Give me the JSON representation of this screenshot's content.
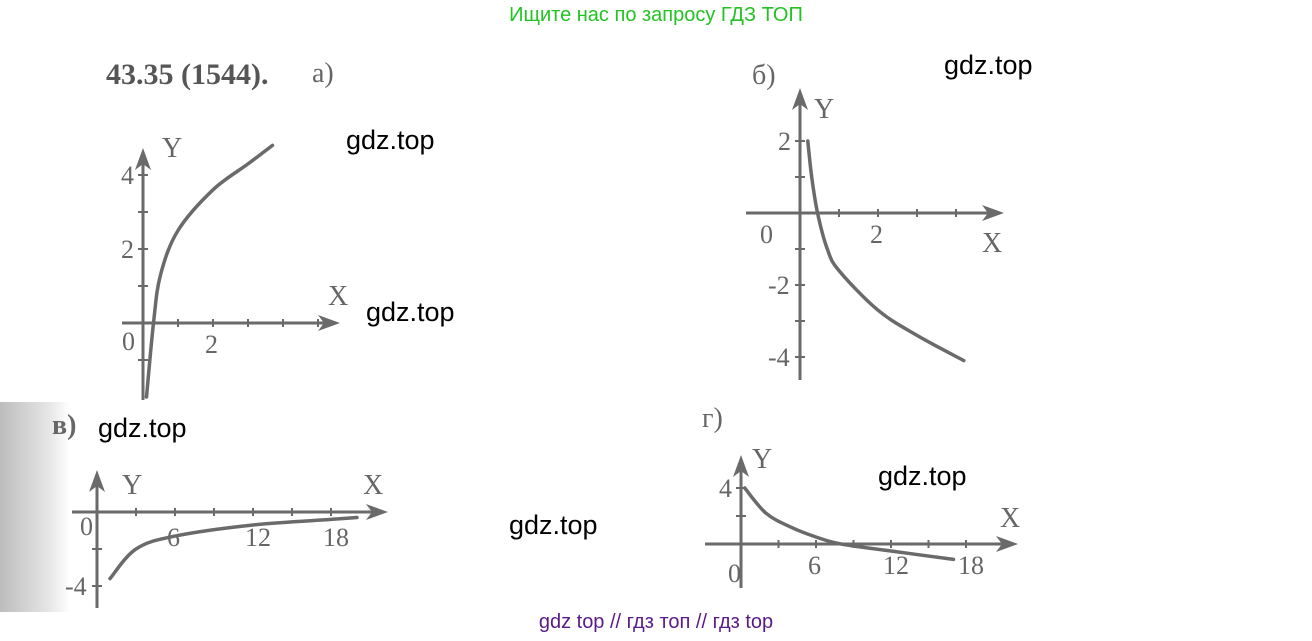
{
  "watermarks": {
    "top_banner": "Ищите нас по запросу ГДЗ ТОП",
    "bottom_banner": "gdz top  //  гдз топ  //  гдз top",
    "site": "gdz.top"
  },
  "problem_number": "43.35 (1544).",
  "colors": {
    "curve": "#6a6a6a",
    "top_banner": "#22c322",
    "bottom_banner": "#5a1a8a"
  },
  "chart_data": [
    {
      "type": "line",
      "panel_label": "а)",
      "xlabel": "X",
      "ylabel": "Y",
      "x_ticks": [
        "0",
        "2"
      ],
      "y_ticks": [
        "2",
        "4"
      ],
      "xlim": [
        0,
        5
      ],
      "ylim": [
        -2,
        5
      ],
      "grid": false,
      "x": [
        0.1,
        0.3,
        0.5,
        1,
        2,
        3,
        3.7
      ],
      "y": [
        -2,
        0,
        1.3,
        2.5,
        3.6,
        4.3,
        4.8
      ]
    },
    {
      "type": "line",
      "panel_label": "б)",
      "xlabel": "X",
      "ylabel": "Y",
      "x_ticks": [
        "0",
        "2"
      ],
      "y_ticks": [
        "2",
        "-2",
        "-4"
      ],
      "xlim": [
        0,
        5
      ],
      "ylim": [
        -4.2,
        2.5
      ],
      "grid": false,
      "x": [
        0.2,
        0.3,
        0.45,
        0.7,
        1,
        2,
        3,
        4.2
      ],
      "y": [
        2,
        1,
        0,
        -1,
        -1.6,
        -2.7,
        -3.4,
        -4.1
      ]
    },
    {
      "type": "line",
      "panel_label": "в)",
      "xlabel": "X",
      "ylabel": "Y",
      "x_ticks": [
        "0",
        "6",
        "12",
        "18"
      ],
      "y_ticks": [
        "-4"
      ],
      "xlim": [
        0,
        22
      ],
      "ylim": [
        -4.5,
        1.5
      ],
      "grid": false,
      "x": [
        1,
        3,
        6,
        12,
        18,
        20
      ],
      "y": [
        -3.6,
        -2,
        -1.3,
        -0.7,
        -0.4,
        -0.3
      ]
    },
    {
      "type": "line",
      "panel_label": "г)",
      "xlabel": "X",
      "ylabel": "Y",
      "x_ticks": [
        "0",
        "6",
        "12",
        "18"
      ],
      "y_ticks": [
        "4"
      ],
      "xlim": [
        0,
        22
      ],
      "ylim": [
        -1.5,
        5
      ],
      "grid": false,
      "x": [
        0.3,
        2,
        4,
        6,
        8,
        12,
        17
      ],
      "y": [
        4,
        2.2,
        1.2,
        0.5,
        0,
        -0.5,
        -1.1
      ]
    }
  ]
}
